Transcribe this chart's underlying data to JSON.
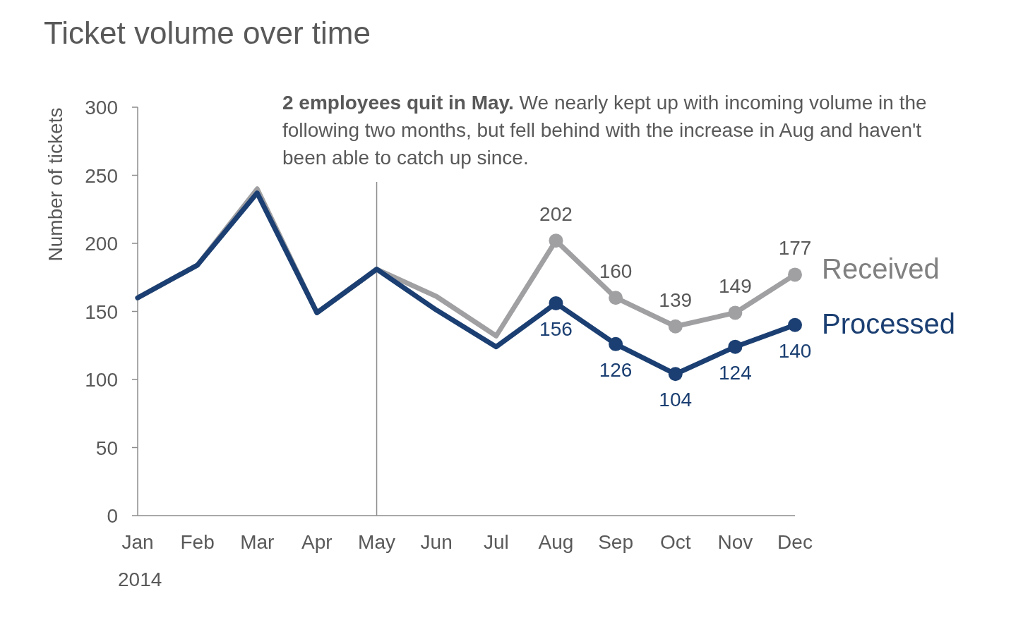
{
  "chart_data": {
    "type": "line",
    "title": "Ticket volume over time",
    "ylabel": "Number of tickets",
    "xlabel": "2014",
    "categories": [
      "Jan",
      "Feb",
      "Mar",
      "Apr",
      "May",
      "Jun",
      "Jul",
      "Aug",
      "Sep",
      "Oct",
      "Nov",
      "Dec"
    ],
    "series": [
      {
        "color": "#a0a0a3",
        "marker": "none",
        "values": [
          160,
          184,
          240,
          149,
          181,
          161,
          132,
          202,
          null,
          null,
          null,
          null
        ]
      },
      {
        "name": "Received",
        "color": "#a0a0a3",
        "marker": "circle",
        "values": [
          null,
          null,
          null,
          null,
          null,
          null,
          null,
          202,
          160,
          139,
          149,
          177
        ],
        "value_labels": [
          null,
          null,
          null,
          null,
          null,
          null,
          null,
          "202",
          "160",
          "139",
          "149",
          "177"
        ]
      },
      {
        "color": "#1b3f72",
        "marker": "none",
        "values": [
          160,
          184,
          237,
          149,
          181,
          151,
          124,
          156,
          null,
          null,
          null,
          null
        ]
      },
      {
        "name": "Processed",
        "color": "#1b3f72",
        "marker": "circle",
        "values": [
          null,
          null,
          null,
          null,
          null,
          null,
          null,
          156,
          126,
          104,
          124,
          140
        ],
        "value_labels": [
          null,
          null,
          null,
          null,
          null,
          null,
          null,
          "156",
          "126",
          "104",
          "124",
          "140"
        ]
      }
    ],
    "ylim": [
      0,
      300
    ],
    "yticks": [
      0,
      50,
      100,
      150,
      200,
      250,
      300
    ],
    "grid": false,
    "line_style": "solid",
    "ref_lines": [
      {
        "axis": "x",
        "value": "May",
        "color": "#8c8c8c"
      }
    ],
    "annotations": [
      "2 employees quit in May. We nearly kept up with incoming volume in the following two months, but fell behind with the increase in Aug and haven't been able to catch up since."
    ]
  }
}
